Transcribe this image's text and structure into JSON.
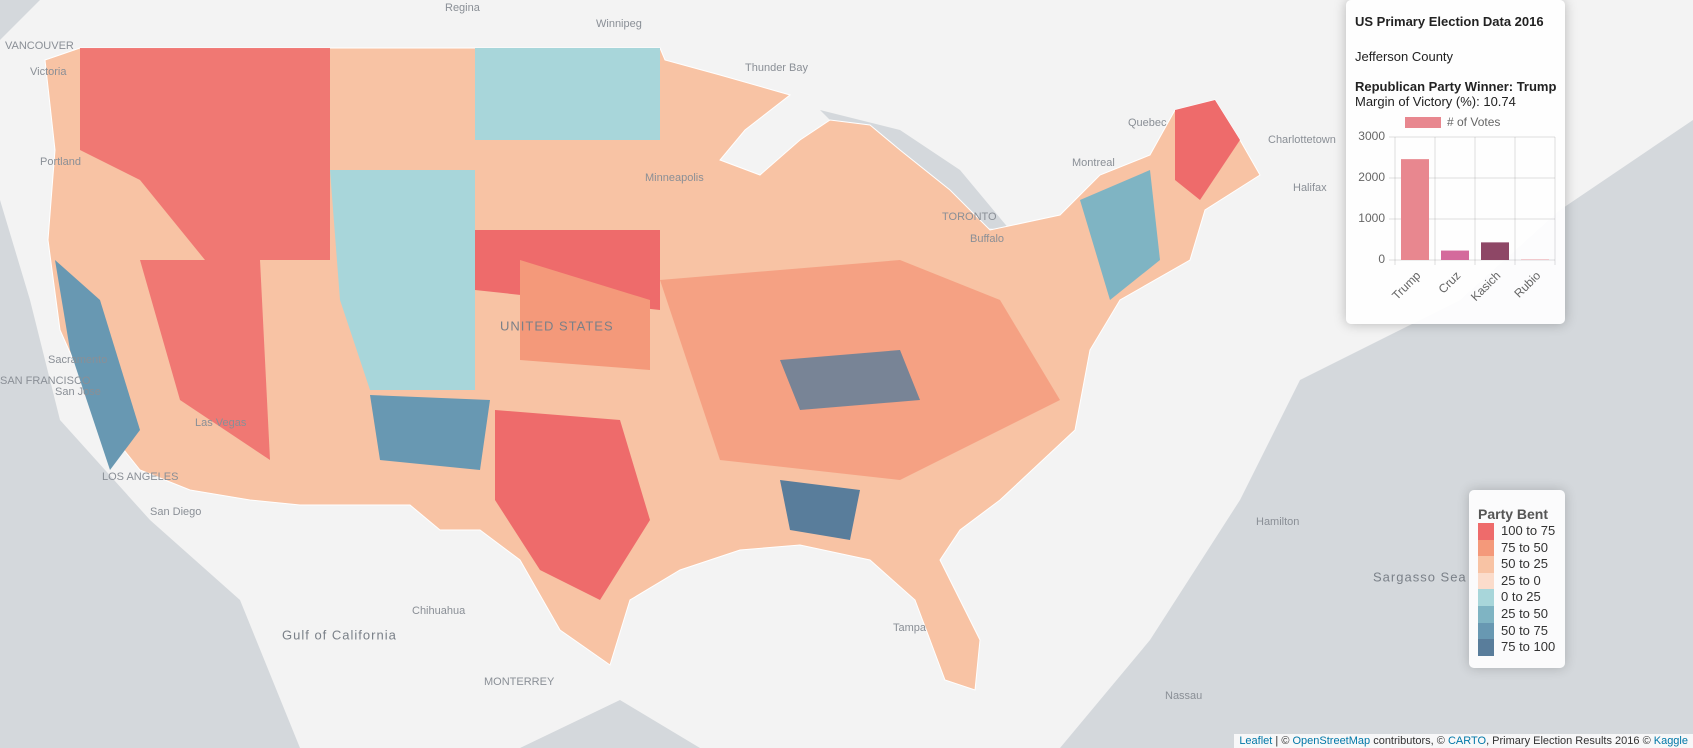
{
  "map_labels": [
    "Regina",
    "Winnipeg",
    "VANCOUVER",
    "Victoria",
    "Thunder Bay",
    "Quebec",
    "Charlottetown",
    "Montreal",
    "Halifax",
    "TORONTO",
    "Buffalo",
    "Sacramento",
    "SAN FRANCISCO",
    "San Jose",
    "LOS ANGELES",
    "San Diego",
    "Las Vegas",
    "Chihuahua",
    "Gulf of California",
    "MONTERREY",
    "Sargasso Sea",
    "Hamilton",
    "Nassau",
    "Tampa",
    "UNITED STATES",
    "Minneapolis",
    "Portland"
  ],
  "info": {
    "title": "US Primary Election Data 2016",
    "county": "Jefferson County",
    "winner": "Republican Party Winner: Trump",
    "margin": "Margin of Victory (%): 10.74"
  },
  "chart_data": {
    "type": "bar",
    "categories": [
      "Trump",
      "Cruz",
      "Kasich",
      "Rubio"
    ],
    "series": [
      {
        "name": "# of Votes",
        "color": "#e8878f",
        "colors": [
          "#e8878f",
          "#d46a9c",
          "#8e4766",
          "#e8878f"
        ],
        "values": [
          2460,
          230,
          430,
          10
        ]
      }
    ],
    "ylim": [
      0,
      3000
    ],
    "yticks": [
      0,
      1000,
      2000,
      3000
    ],
    "grid": true
  },
  "legend": {
    "title": "Party Bent",
    "items": [
      {
        "label": "100 to 75",
        "color": "#ee6b6b"
      },
      {
        "label": "75 to 50",
        "color": "#f4997a"
      },
      {
        "label": "50 to 25",
        "color": "#f8c3a4"
      },
      {
        "label": "25 to 0",
        "color": "#fbdccb"
      },
      {
        "label": "0 to 25",
        "color": "#a8d6da"
      },
      {
        "label": "25 to 50",
        "color": "#7fb4c3"
      },
      {
        "label": "50 to 75",
        "color": "#6898b2"
      },
      {
        "label": "75 to 100",
        "color": "#597d9b"
      }
    ]
  },
  "attribution": [
    "Leaflet",
    " | © ",
    "OpenStreetMap",
    " contributors, © ",
    "CARTO",
    ", Primary Election Results 2016 © ",
    "Kaggle"
  ]
}
